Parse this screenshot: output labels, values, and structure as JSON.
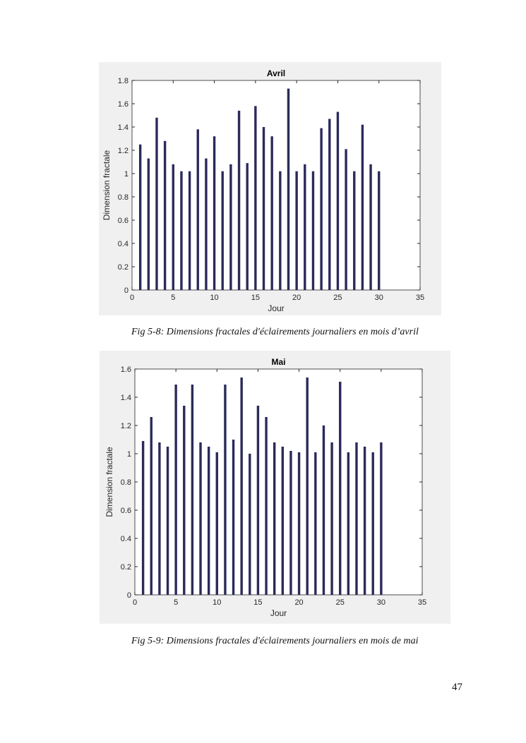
{
  "chart_data": [
    {
      "type": "bar",
      "title": "Avril",
      "xlabel": "Jour",
      "ylabel": "Dimension fractale",
      "xlim": [
        0,
        35
      ],
      "ylim": [
        0,
        1.8
      ],
      "xticks": [
        0,
        5,
        10,
        15,
        20,
        25,
        30,
        35
      ],
      "yticks": [
        0,
        0.2,
        0.4,
        0.6,
        0.8,
        1,
        1.2,
        1.4,
        1.6,
        1.8
      ],
      "x": [
        1,
        2,
        3,
        4,
        5,
        6,
        7,
        8,
        9,
        10,
        11,
        12,
        13,
        14,
        15,
        16,
        17,
        18,
        19,
        20,
        21,
        22,
        23,
        24,
        25,
        26,
        27,
        28,
        29,
        30
      ],
      "values": [
        1.25,
        1.13,
        1.48,
        1.28,
        1.08,
        1.02,
        1.02,
        1.38,
        1.13,
        1.32,
        1.02,
        1.08,
        1.54,
        1.09,
        1.58,
        1.4,
        1.32,
        1.02,
        1.73,
        1.02,
        1.08,
        1.02,
        1.39,
        1.47,
        1.53,
        1.21,
        1.02,
        1.42,
        1.08,
        1.02
      ],
      "bar_color": "#2b2a5a",
      "grid": false
    },
    {
      "type": "bar",
      "title": "Mai",
      "xlabel": "Jour",
      "ylabel": "Dimension fractale",
      "xlim": [
        0,
        35
      ],
      "ylim": [
        0,
        1.6
      ],
      "xticks": [
        0,
        5,
        10,
        15,
        20,
        25,
        30,
        35
      ],
      "yticks": [
        0,
        0.2,
        0.4,
        0.6,
        0.8,
        1,
        1.2,
        1.4,
        1.6
      ],
      "x": [
        1,
        2,
        3,
        4,
        5,
        6,
        7,
        8,
        9,
        10,
        11,
        12,
        13,
        14,
        15,
        16,
        17,
        18,
        19,
        20,
        21,
        22,
        23,
        24,
        25,
        26,
        27,
        28,
        29,
        30
      ],
      "values": [
        1.09,
        1.26,
        1.08,
        1.05,
        1.49,
        1.34,
        1.49,
        1.08,
        1.05,
        1.01,
        1.49,
        1.1,
        1.54,
        1.0,
        1.34,
        1.26,
        1.08,
        1.05,
        1.02,
        1.01,
        1.54,
        1.01,
        1.2,
        1.08,
        1.51,
        1.01,
        1.08,
        1.05,
        1.01,
        1.08
      ],
      "bar_color": "#2b2a5a",
      "grid": false
    }
  ],
  "captions": [
    "Fig 5-8: Dimensions fractales d'éclairements journaliers en mois d’avril",
    "Fig 5-9: Dimensions fractales d'éclairements journaliers en mois de mai"
  ],
  "page_number": "47"
}
